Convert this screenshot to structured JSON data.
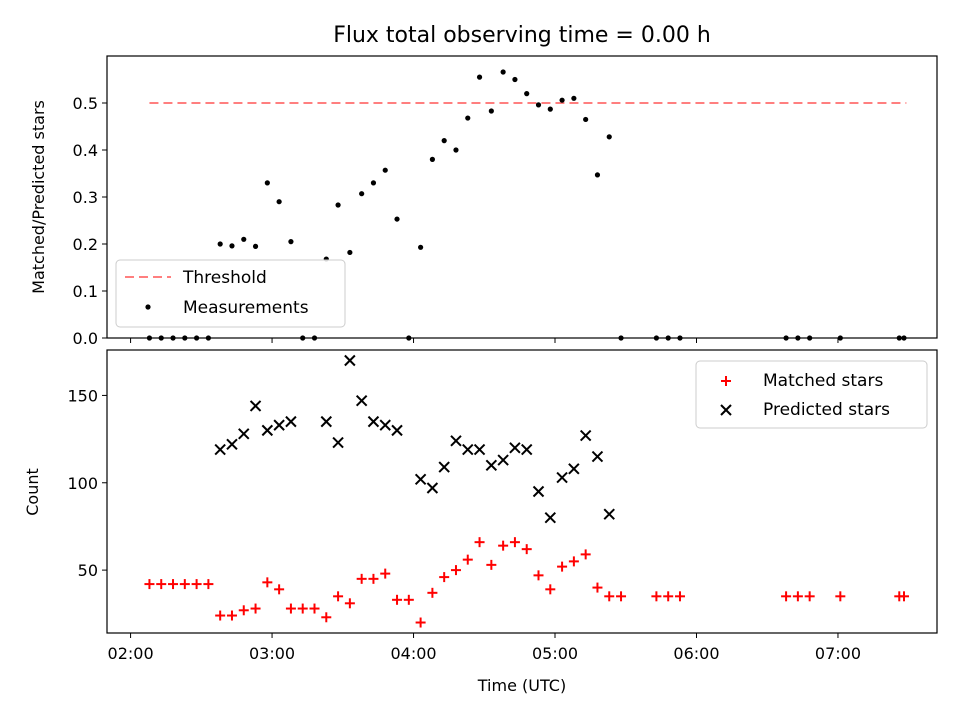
{
  "chart_data": [
    {
      "type": "scatter",
      "title": "Flux total observing time = 0.00 h",
      "xlabel": "",
      "ylabel": "Matched/Predicted stars",
      "ylim": [
        0,
        0.6
      ],
      "yticks": [
        "0.0",
        "0.1",
        "0.2",
        "0.3",
        "0.4",
        "0.5"
      ],
      "legend_position": "lower-left",
      "threshold": {
        "name": "Threshold",
        "value": 0.5,
        "x_range": [
          "02:08",
          "07:29"
        ],
        "color": "#ff7f7f"
      },
      "series": [
        {
          "name": "Measurements",
          "color": "#000000",
          "points": [
            [
              "02:08",
              0.0
            ],
            [
              "02:13",
              0.0
            ],
            [
              "02:18",
              0.0
            ],
            [
              "02:23",
              0.0
            ],
            [
              "02:28",
              0.0
            ],
            [
              "02:33",
              0.0
            ],
            [
              "02:38",
              0.2
            ],
            [
              "02:43",
              0.196
            ],
            [
              "02:48",
              0.21
            ],
            [
              "02:53",
              0.195
            ],
            [
              "02:58",
              0.33
            ],
            [
              "03:03",
              0.29
            ],
            [
              "03:08",
              0.205
            ],
            [
              "03:13",
              0.0
            ],
            [
              "03:18",
              0.0
            ],
            [
              "03:23",
              0.168
            ],
            [
              "03:28",
              0.283
            ],
            [
              "03:33",
              0.182
            ],
            [
              "03:38",
              0.307
            ],
            [
              "03:43",
              0.33
            ],
            [
              "03:48",
              0.357
            ],
            [
              "03:53",
              0.253
            ],
            [
              "03:58",
              0.0
            ],
            [
              "04:03",
              0.193
            ],
            [
              "04:08",
              0.38
            ],
            [
              "04:13",
              0.42
            ],
            [
              "04:18",
              0.4
            ],
            [
              "04:23",
              0.468
            ],
            [
              "04:28",
              0.555
            ],
            [
              "04:33",
              0.483
            ],
            [
              "04:38",
              0.566
            ],
            [
              "04:43",
              0.55
            ],
            [
              "04:48",
              0.52
            ],
            [
              "04:53",
              0.496
            ],
            [
              "04:58",
              0.487
            ],
            [
              "05:03",
              0.506
            ],
            [
              "05:08",
              0.51
            ],
            [
              "05:13",
              0.465
            ],
            [
              "05:18",
              0.347
            ],
            [
              "05:23",
              0.428
            ],
            [
              "05:28",
              0.0
            ],
            [
              "05:43",
              0.0
            ],
            [
              "05:48",
              0.0
            ],
            [
              "05:53",
              0.0
            ],
            [
              "06:38",
              0.0
            ],
            [
              "06:43",
              0.0
            ],
            [
              "06:48",
              0.0
            ],
            [
              "07:01",
              0.0
            ],
            [
              "07:26",
              0.0
            ],
            [
              "07:28",
              0.0
            ]
          ]
        }
      ]
    },
    {
      "type": "scatter",
      "title": "",
      "xlabel": "Time (UTC)",
      "ylabel": "Count",
      "ylim": [
        14,
        176
      ],
      "yticks": [
        "50",
        "100",
        "150"
      ],
      "xticks": [
        "02:00",
        "03:00",
        "04:00",
        "05:00",
        "06:00",
        "07:00"
      ],
      "xlim": [
        "01:50",
        "07:42"
      ],
      "legend_position": "top-right",
      "series": [
        {
          "name": "Matched stars",
          "marker": "plus",
          "color": "#ff0000",
          "points": [
            [
              "02:08",
              42
            ],
            [
              "02:13",
              42
            ],
            [
              "02:18",
              42
            ],
            [
              "02:23",
              42
            ],
            [
              "02:28",
              42
            ],
            [
              "02:33",
              42
            ],
            [
              "02:38",
              24
            ],
            [
              "02:43",
              24
            ],
            [
              "02:48",
              27
            ],
            [
              "02:53",
              28
            ],
            [
              "02:58",
              43
            ],
            [
              "03:03",
              39
            ],
            [
              "03:08",
              28
            ],
            [
              "03:13",
              28
            ],
            [
              "03:18",
              28
            ],
            [
              "03:23",
              23
            ],
            [
              "03:28",
              35
            ],
            [
              "03:33",
              31
            ],
            [
              "03:38",
              45
            ],
            [
              "03:43",
              45
            ],
            [
              "03:48",
              48
            ],
            [
              "03:53",
              33
            ],
            [
              "03:58",
              33
            ],
            [
              "04:03",
              20
            ],
            [
              "04:08",
              37
            ],
            [
              "04:13",
              46
            ],
            [
              "04:18",
              50
            ],
            [
              "04:23",
              56
            ],
            [
              "04:28",
              66
            ],
            [
              "04:33",
              53
            ],
            [
              "04:38",
              64
            ],
            [
              "04:43",
              66
            ],
            [
              "04:48",
              62
            ],
            [
              "04:53",
              47
            ],
            [
              "04:58",
              39
            ],
            [
              "05:03",
              52
            ],
            [
              "05:08",
              55
            ],
            [
              "05:13",
              59
            ],
            [
              "05:18",
              40
            ],
            [
              "05:23",
              35
            ],
            [
              "05:28",
              35
            ],
            [
              "05:43",
              35
            ],
            [
              "05:48",
              35
            ],
            [
              "05:53",
              35
            ],
            [
              "06:38",
              35
            ],
            [
              "06:43",
              35
            ],
            [
              "06:48",
              35
            ],
            [
              "07:01",
              35
            ],
            [
              "07:26",
              35
            ],
            [
              "07:28",
              35
            ]
          ]
        },
        {
          "name": "Predicted stars",
          "marker": "x",
          "color": "#000000",
          "points": [
            [
              "02:38",
              119
            ],
            [
              "02:43",
              122
            ],
            [
              "02:48",
              128
            ],
            [
              "02:53",
              144
            ],
            [
              "02:58",
              130
            ],
            [
              "03:03",
              133
            ],
            [
              "03:08",
              135
            ],
            [
              "03:23",
              135
            ],
            [
              "03:28",
              123
            ],
            [
              "03:33",
              170
            ],
            [
              "03:38",
              147
            ],
            [
              "03:43",
              135
            ],
            [
              "03:48",
              133
            ],
            [
              "03:53",
              130
            ],
            [
              "04:03",
              102
            ],
            [
              "04:08",
              97
            ],
            [
              "04:13",
              109
            ],
            [
              "04:18",
              124
            ],
            [
              "04:23",
              119
            ],
            [
              "04:28",
              119
            ],
            [
              "04:33",
              110
            ],
            [
              "04:38",
              113
            ],
            [
              "04:43",
              120
            ],
            [
              "04:48",
              119
            ],
            [
              "04:53",
              95
            ],
            [
              "04:58",
              80
            ],
            [
              "05:03",
              103
            ],
            [
              "05:08",
              108
            ],
            [
              "05:13",
              127
            ],
            [
              "05:18",
              115
            ],
            [
              "05:23",
              82
            ]
          ]
        }
      ]
    }
  ]
}
